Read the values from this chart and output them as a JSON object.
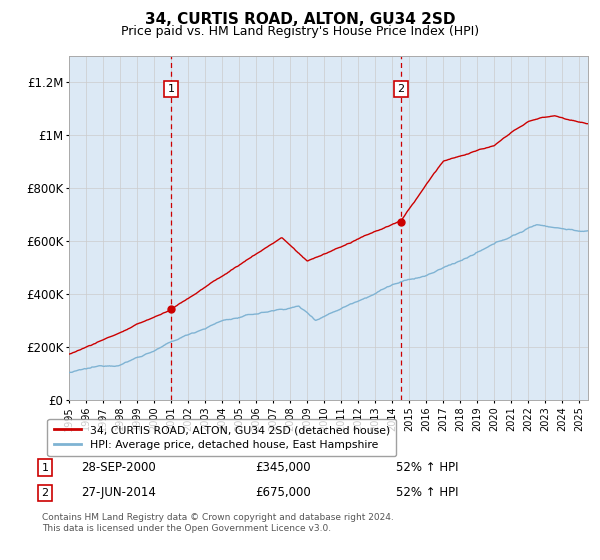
{
  "title": "34, CURTIS ROAD, ALTON, GU34 2SD",
  "subtitle": "Price paid vs. HM Land Registry's House Price Index (HPI)",
  "background_color": "#dce9f5",
  "ylim": [
    0,
    1300000
  ],
  "yticks": [
    0,
    200000,
    400000,
    600000,
    800000,
    1000000,
    1200000
  ],
  "ytick_labels": [
    "£0",
    "£200K",
    "£400K",
    "£600K",
    "£800K",
    "£1M",
    "£1.2M"
  ],
  "red_line_color": "#cc0000",
  "blue_line_color": "#7fb3d3",
  "grid_color": "#cccccc",
  "sale1_x": 2001.0,
  "sale1_y": 345000,
  "sale2_x": 2014.5,
  "sale2_y": 675000,
  "legend_label_red": "34, CURTIS ROAD, ALTON, GU34 2SD (detached house)",
  "legend_label_blue": "HPI: Average price, detached house, East Hampshire",
  "footer1": "Contains HM Land Registry data © Crown copyright and database right 2024.",
  "footer2": "This data is licensed under the Open Government Licence v3.0.",
  "xmin": 1995,
  "xmax": 2025.5,
  "sale1_date": "28-SEP-2000",
  "sale1_price": "£345,000",
  "sale1_hpi": "52% ↑ HPI",
  "sale2_date": "27-JUN-2014",
  "sale2_price": "£675,000",
  "sale2_hpi": "52% ↑ HPI"
}
